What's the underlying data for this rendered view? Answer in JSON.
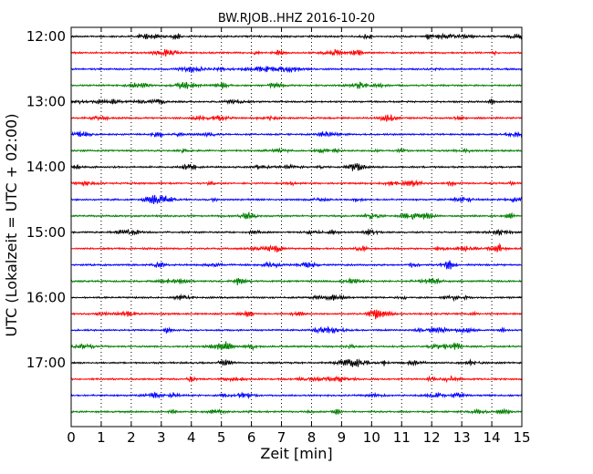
{
  "chart_data": {
    "type": "line",
    "title": "BW.RJOB..HHZ 2016-10-20",
    "xlabel": "Zeit  [min]",
    "ylabel": "UTC (Lokalzeit = UTC + 02:00)",
    "xlim": [
      0,
      15
    ],
    "x_ticks": [
      "0",
      "1",
      "2",
      "3",
      "4",
      "5",
      "6",
      "7",
      "8",
      "9",
      "10",
      "11",
      "12",
      "13",
      "14",
      "15"
    ],
    "y_ticks": [
      "12:00",
      "13:00",
      "14:00",
      "15:00",
      "16:00",
      "17:00"
    ],
    "grid": "vertical-dotted",
    "trace_colors": [
      "#000000",
      "#ff0000",
      "#0000ff",
      "#007f00"
    ],
    "traces": [
      {
        "start": "12:00",
        "color": "#000000"
      },
      {
        "start": "12:15",
        "color": "#ff0000"
      },
      {
        "start": "12:30",
        "color": "#0000ff"
      },
      {
        "start": "12:45",
        "color": "#007f00"
      },
      {
        "start": "13:00",
        "color": "#000000"
      },
      {
        "start": "13:15",
        "color": "#ff0000"
      },
      {
        "start": "13:30",
        "color": "#0000ff"
      },
      {
        "start": "13:45",
        "color": "#007f00"
      },
      {
        "start": "14:00",
        "color": "#000000"
      },
      {
        "start": "14:15",
        "color": "#ff0000"
      },
      {
        "start": "14:30",
        "color": "#0000ff"
      },
      {
        "start": "14:45",
        "color": "#007f00"
      },
      {
        "start": "15:00",
        "color": "#000000"
      },
      {
        "start": "15:15",
        "color": "#ff0000"
      },
      {
        "start": "15:30",
        "color": "#0000ff"
      },
      {
        "start": "15:45",
        "color": "#007f00"
      },
      {
        "start": "16:00",
        "color": "#000000"
      },
      {
        "start": "16:15",
        "color": "#ff0000"
      },
      {
        "start": "16:30",
        "color": "#0000ff"
      },
      {
        "start": "16:45",
        "color": "#007f00"
      },
      {
        "start": "17:00",
        "color": "#000000"
      },
      {
        "start": "17:15",
        "color": "#ff0000"
      },
      {
        "start": "17:30",
        "color": "#0000ff"
      },
      {
        "start": "17:45",
        "color": "#007f00"
      }
    ]
  }
}
